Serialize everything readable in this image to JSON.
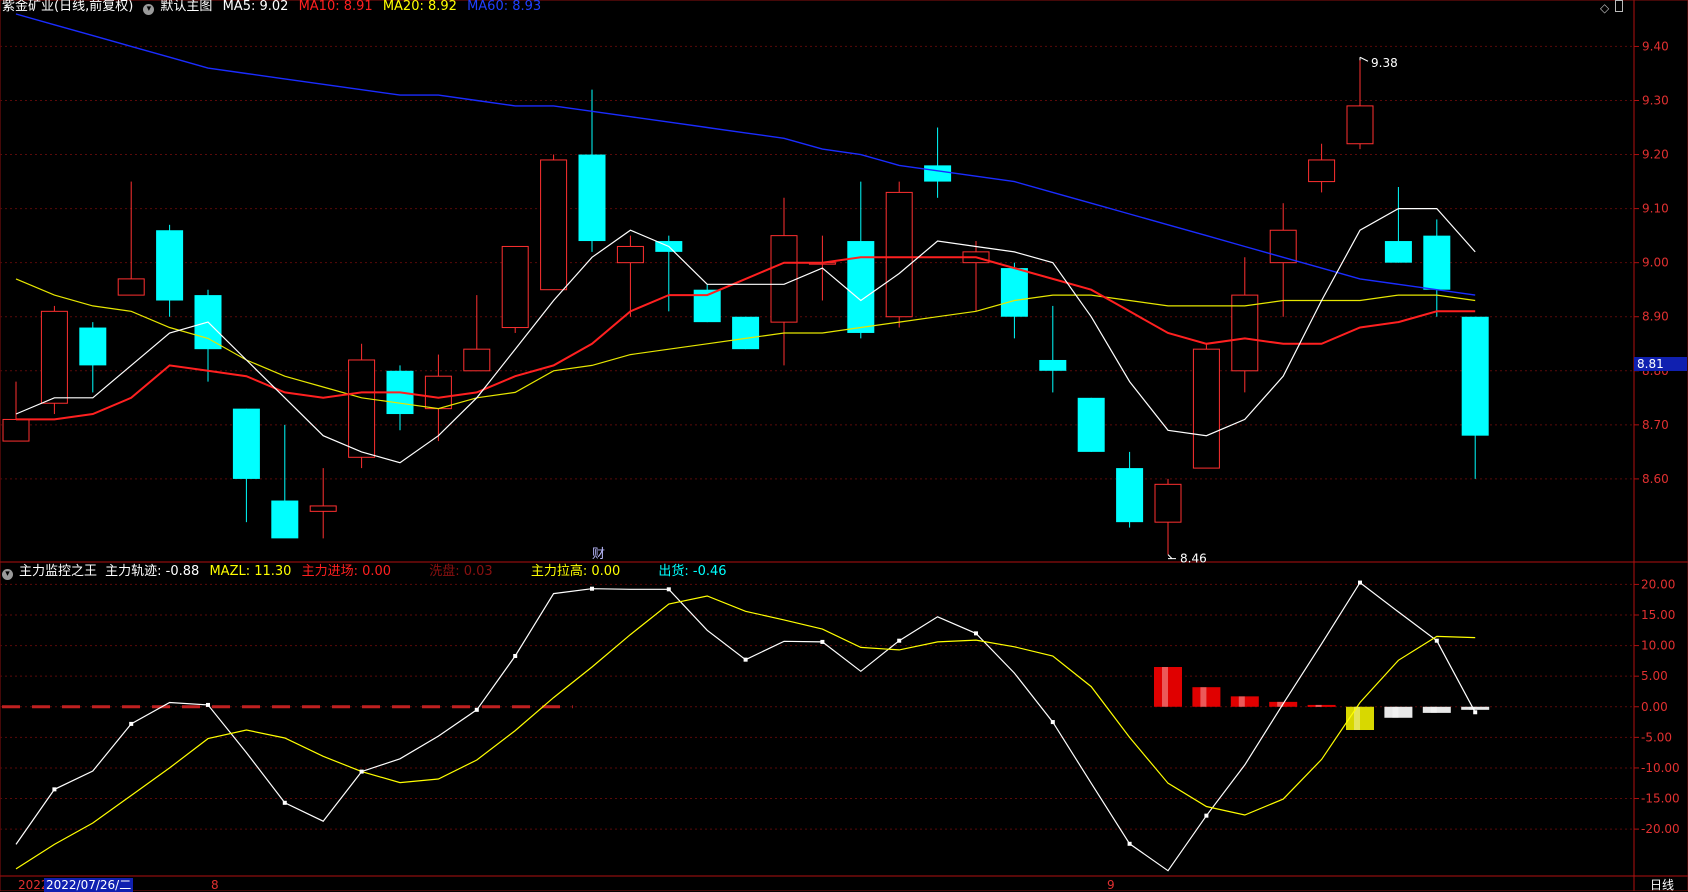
{
  "header": {
    "title": "紫金矿业(日线,前复权)",
    "main_label": "默认主图",
    "ma5": {
      "label": "MA5: 9.02",
      "color": "#ffffff"
    },
    "ma10": {
      "label": "MA10: 8.91",
      "color": "#ff2020"
    },
    "ma20": {
      "label": "MA20: 8.92",
      "color": "#ffff00"
    },
    "ma60": {
      "label": "MA60: 8.93",
      "color": "#2040ff"
    }
  },
  "indicator_header": {
    "name": "主力监控之王",
    "track": {
      "label": "主力轨迹: -0.88",
      "color": "#ffffff"
    },
    "mazl": {
      "label": "MAZL: 11.30",
      "color": "#ffff00"
    },
    "enter": {
      "label": "主力进场: 0.00",
      "color": "#ff2020"
    },
    "wash": {
      "label": "洗盘: 0.03",
      "color": "#8a1010"
    },
    "pull": {
      "label": "主力拉高: 0.00",
      "color": "#ffff00"
    },
    "ship": {
      "label": "出货: -0.46",
      "color": "#00ffff"
    }
  },
  "current_price_tag": "8.81",
  "cai_marker": "财",
  "bottom": {
    "year_label": "2022",
    "date_label": "2022/07/26/二",
    "month_8": "8",
    "month_9": "9",
    "period": "日线"
  },
  "chart_data": [
    {
      "type": "candlestick",
      "ylim": [
        8.45,
        9.46
      ],
      "y_ticks": [
        "9.40",
        "9.30",
        "9.20",
        "9.10",
        "9.00",
        "8.90",
        "8.80",
        "8.70",
        "8.60"
      ],
      "candles": [
        {
          "o": 8.67,
          "h": 8.78,
          "l": 8.67,
          "c": 8.71
        },
        {
          "o": 8.74,
          "h": 8.92,
          "l": 8.72,
          "c": 8.91
        },
        {
          "o": 8.88,
          "h": 8.89,
          "l": 8.76,
          "c": 8.81
        },
        {
          "o": 8.94,
          "h": 9.15,
          "l": 8.94,
          "c": 8.97
        },
        {
          "o": 9.06,
          "h": 9.07,
          "l": 8.9,
          "c": 8.93
        },
        {
          "o": 8.94,
          "h": 8.95,
          "l": 8.78,
          "c": 8.84
        },
        {
          "o": 8.73,
          "h": 8.73,
          "l": 8.52,
          "c": 8.6
        },
        {
          "o": 8.56,
          "h": 8.7,
          "l": 8.5,
          "c": 8.49
        },
        {
          "o": 8.54,
          "h": 8.62,
          "l": 8.49,
          "c": 8.55
        },
        {
          "o": 8.64,
          "h": 8.85,
          "l": 8.62,
          "c": 8.82
        },
        {
          "o": 8.8,
          "h": 8.81,
          "l": 8.69,
          "c": 8.72
        },
        {
          "o": 8.73,
          "h": 8.83,
          "l": 8.67,
          "c": 8.79
        },
        {
          "o": 8.8,
          "h": 8.94,
          "l": 8.8,
          "c": 8.84
        },
        {
          "o": 8.88,
          "h": 9.03,
          "l": 8.87,
          "c": 9.03
        },
        {
          "o": 8.95,
          "h": 9.2,
          "l": 8.95,
          "c": 9.19
        },
        {
          "o": 9.2,
          "h": 9.32,
          "l": 9.02,
          "c": 9.04
        },
        {
          "o": 9.0,
          "h": 9.05,
          "l": 8.9,
          "c": 9.03
        },
        {
          "o": 9.04,
          "h": 9.05,
          "l": 8.91,
          "c": 9.02
        },
        {
          "o": 8.95,
          "h": 8.96,
          "l": 8.89,
          "c": 8.89
        },
        {
          "o": 8.9,
          "h": 8.9,
          "l": 8.84,
          "c": 8.84
        },
        {
          "o": 8.89,
          "h": 9.12,
          "l": 8.81,
          "c": 9.05
        },
        {
          "o": 9.0,
          "h": 9.05,
          "l": 8.93,
          "c": 9.0
        },
        {
          "o": 9.04,
          "h": 9.15,
          "l": 8.86,
          "c": 8.87
        },
        {
          "o": 8.9,
          "h": 9.15,
          "l": 8.88,
          "c": 9.13
        },
        {
          "o": 9.18,
          "h": 9.25,
          "l": 9.12,
          "c": 9.15
        },
        {
          "o": 9.0,
          "h": 9.04,
          "l": 8.91,
          "c": 9.02
        },
        {
          "o": 8.99,
          "h": 9.0,
          "l": 8.86,
          "c": 8.9
        },
        {
          "o": 8.82,
          "h": 8.92,
          "l": 8.76,
          "c": 8.8
        },
        {
          "o": 8.75,
          "h": 8.75,
          "l": 8.65,
          "c": 8.65
        },
        {
          "o": 8.62,
          "h": 8.65,
          "l": 8.51,
          "c": 8.52
        },
        {
          "o": 8.52,
          "h": 8.6,
          "l": 8.46,
          "c": 8.59
        },
        {
          "o": 8.62,
          "h": 8.85,
          "l": 8.62,
          "c": 8.84
        },
        {
          "o": 8.8,
          "h": 9.01,
          "l": 8.76,
          "c": 8.94
        },
        {
          "o": 9.0,
          "h": 9.11,
          "l": 8.9,
          "c": 9.06
        },
        {
          "o": 9.15,
          "h": 9.22,
          "l": 9.13,
          "c": 9.19
        },
        {
          "o": 9.22,
          "h": 9.38,
          "l": 9.21,
          "c": 9.29
        },
        {
          "o": 9.04,
          "h": 9.14,
          "l": 9.0,
          "c": 9.0
        },
        {
          "o": 9.05,
          "h": 9.08,
          "l": 8.9,
          "c": 8.95
        },
        {
          "o": 8.9,
          "h": 8.9,
          "l": 8.6,
          "c": 8.68
        }
      ],
      "ma5": [
        8.72,
        8.75,
        8.75,
        8.81,
        8.87,
        8.89,
        8.82,
        8.75,
        8.68,
        8.65,
        8.63,
        8.68,
        8.75,
        8.84,
        8.93,
        9.01,
        9.06,
        9.03,
        8.96,
        8.96,
        8.96,
        8.99,
        8.93,
        8.98,
        9.04,
        9.03,
        9.02,
        9.0,
        8.9,
        8.78,
        8.69,
        8.68,
        8.71,
        8.79,
        8.93,
        9.06,
        9.1,
        9.1,
        9.02
      ],
      "ma10": [
        8.71,
        8.71,
        8.72,
        8.75,
        8.81,
        8.8,
        8.79,
        8.76,
        8.75,
        8.76,
        8.76,
        8.75,
        8.76,
        8.79,
        8.81,
        8.85,
        8.91,
        8.94,
        8.94,
        8.97,
        9.0,
        9.0,
        9.01,
        9.01,
        9.01,
        9.01,
        8.99,
        8.97,
        8.95,
        8.91,
        8.87,
        8.85,
        8.86,
        8.85,
        8.85,
        8.88,
        8.89,
        8.91,
        8.91
      ],
      "ma20": [
        8.97,
        8.94,
        8.92,
        8.91,
        8.88,
        8.86,
        8.82,
        8.79,
        8.77,
        8.75,
        8.74,
        8.73,
        8.75,
        8.76,
        8.8,
        8.81,
        8.83,
        8.84,
        8.85,
        8.86,
        8.87,
        8.87,
        8.88,
        8.89,
        8.9,
        8.91,
        8.93,
        8.94,
        8.94,
        8.93,
        8.92,
        8.92,
        8.92,
        8.93,
        8.93,
        8.93,
        8.94,
        8.94,
        8.93
      ],
      "ma60": [
        9.46,
        9.44,
        9.42,
        9.4,
        9.38,
        9.36,
        9.35,
        9.34,
        9.33,
        9.32,
        9.31,
        9.31,
        9.3,
        9.29,
        9.29,
        9.28,
        9.27,
        9.26,
        9.25,
        9.24,
        9.23,
        9.21,
        9.2,
        9.18,
        9.17,
        9.16,
        9.15,
        9.13,
        9.11,
        9.09,
        9.07,
        9.05,
        9.03,
        9.01,
        8.99,
        8.97,
        8.96,
        8.95,
        8.94
      ],
      "annotations": {
        "high": "9.38",
        "low": "8.46"
      }
    },
    {
      "type": "line",
      "title": "主力监控之王",
      "ylim": [
        -27.5,
        23.5
      ],
      "y_ticks": [
        "20.00",
        "15.00",
        "10.00",
        "5.00",
        "0.00",
        "-5.00",
        "-10.00",
        "-15.00",
        "-20.00"
      ],
      "series": [
        {
          "name": "主力轨迹",
          "color": "#ffffff",
          "values": [
            -22.5,
            -13.5,
            -10.5,
            -2.8,
            0.7,
            0.3,
            -7.5,
            -15.7,
            -18.7,
            -10.6,
            -8.5,
            -4.8,
            -0.5,
            8.3,
            18.5,
            19.3,
            19.2,
            19.2,
            12.5,
            7.7,
            10.7,
            10.6,
            5.8,
            10.8,
            14.7,
            12.0,
            5.5,
            -2.5,
            -12.5,
            -22.4,
            -26.8,
            -17.8,
            -9.5,
            0.5,
            10.3,
            20.3,
            15.5,
            10.8,
            -0.9
          ]
        },
        {
          "name": "MAZL",
          "color": "#ffff00",
          "values": [
            -26.5,
            -22.5,
            -19.0,
            -14.5,
            -10.0,
            -5.2,
            -3.8,
            -5.1,
            -8.1,
            -10.6,
            -12.4,
            -11.8,
            -8.7,
            -3.9,
            1.5,
            6.5,
            11.8,
            16.8,
            18.1,
            15.6,
            14.2,
            12.7,
            9.7,
            9.3,
            10.6,
            10.9,
            9.8,
            8.3,
            3.3,
            -5.0,
            -12.5,
            -16.3,
            -17.7,
            -15.1,
            -8.6,
            0.7,
            7.6,
            11.5,
            11.3
          ]
        }
      ],
      "bars": [
        {
          "i": 30,
          "v": 6.5,
          "kind": "red"
        },
        {
          "i": 31,
          "v": 3.2,
          "kind": "red"
        },
        {
          "i": 32,
          "v": 1.7,
          "kind": "red"
        },
        {
          "i": 33,
          "v": 0.8,
          "kind": "red"
        },
        {
          "i": 34,
          "v": 0.3,
          "kind": "red"
        },
        {
          "i": 35,
          "v": -3.8,
          "kind": "yellow"
        },
        {
          "i": 36,
          "v": -1.8,
          "kind": "white"
        },
        {
          "i": 37,
          "v": -1.0,
          "kind": "white"
        },
        {
          "i": 38,
          "v": -0.5,
          "kind": "white"
        }
      ]
    }
  ]
}
